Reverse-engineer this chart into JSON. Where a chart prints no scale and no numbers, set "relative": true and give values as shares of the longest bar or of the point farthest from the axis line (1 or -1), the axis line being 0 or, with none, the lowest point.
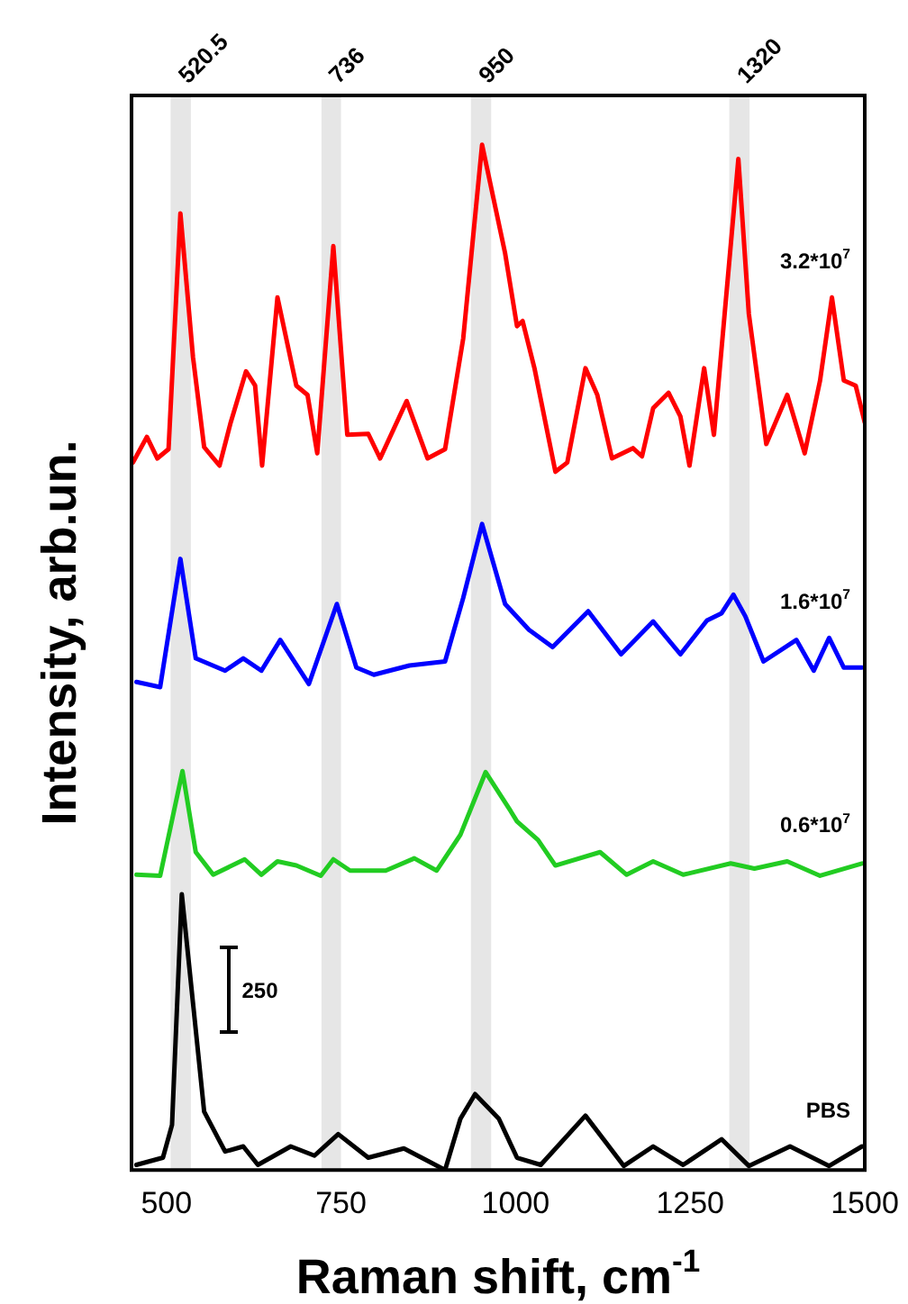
{
  "chart_data": {
    "type": "line",
    "relative": true,
    "xlabel": "Raman shift, cm$^{-1}$",
    "ylabel": "Intensity, arb.un.",
    "xlim": [
      450,
      1500
    ],
    "xticks": [
      500,
      750,
      1000,
      1250,
      1500
    ],
    "grid": false,
    "legend": false,
    "marker": "none",
    "line_style": "solid",
    "bands": [
      {
        "axis": "x",
        "from": 506,
        "to": 535,
        "label": "520.5",
        "color": "#e6e6e6"
      },
      {
        "axis": "x",
        "from": 722,
        "to": 750,
        "label": "736",
        "color": "#e6e6e6"
      },
      {
        "axis": "x",
        "from": 936,
        "to": 965,
        "label": "950",
        "color": "#e6e6e6"
      },
      {
        "axis": "x",
        "from": 1306,
        "to": 1335,
        "label": "1320",
        "color": "#e6e6e6"
      }
    ],
    "annotations": [
      "250"
    ],
    "series": [
      {
        "name": "3.2*10$^{7}$",
        "color": "#ff0000",
        "x": [
          452,
          472,
          487,
          503,
          520,
          538,
          554,
          576,
          592,
          614,
          627,
          637,
          659,
          686,
          702,
          716,
          739,
          759,
          789,
          806,
          844,
          874,
          899,
          925,
          952,
          985,
          1002,
          1010,
          1027,
          1057,
          1074,
          1100,
          1117,
          1138,
          1168,
          1181,
          1197,
          1219,
          1236,
          1249,
          1270,
          1284,
          1319,
          1334,
          1359,
          1389,
          1414,
          1436,
          1453,
          1470,
          1487,
          1500
        ],
        "values": [
          0.69,
          0.715,
          0.694,
          0.703,
          0.933,
          0.793,
          0.705,
          0.687,
          0.729,
          0.779,
          0.765,
          0.687,
          0.851,
          0.765,
          0.756,
          0.699,
          0.901,
          0.717,
          0.718,
          0.694,
          0.75,
          0.694,
          0.703,
          0.811,
          1,
          0.894,
          0.823,
          0.828,
          0.782,
          0.681,
          0.69,
          0.782,
          0.756,
          0.694,
          0.704,
          0.696,
          0.743,
          0.758,
          0.735,
          0.687,
          0.782,
          0.717,
          0.986,
          0.835,
          0.708,
          0.756,
          0.699,
          0.77,
          0.851,
          0.77,
          0.765,
          0.729
        ]
      },
      {
        "name": "1.6*10$^{7}$",
        "color": "#0000ff",
        "x": [
          457,
          491,
          520,
          542,
          584,
          610,
          636,
          663,
          704,
          744,
          772,
          797,
          848,
          899,
          925,
          952,
          985,
          1019,
          1053,
          1104,
          1151,
          1197,
          1236,
          1274,
          1295,
          1312,
          1329,
          1355,
          1402,
          1427,
          1449,
          1470,
          1496
        ],
        "values": [
          0.476,
          0.471,
          0.596,
          0.499,
          0.487,
          0.499,
          0.487,
          0.517,
          0.474,
          0.552,
          0.49,
          0.483,
          0.492,
          0.496,
          0.558,
          0.63,
          0.552,
          0.527,
          0.51,
          0.545,
          0.503,
          0.535,
          0.503,
          0.536,
          0.543,
          0.561,
          0.54,
          0.496,
          0.517,
          0.487,
          0.519,
          0.49,
          0.49
        ]
      },
      {
        "name": "0.6*10$^{7}$",
        "color": "#22cc22",
        "x": [
          457,
          491,
          523,
          542,
          567,
          612,
          636,
          659,
          686,
          721,
          739,
          763,
          814,
          855,
          887,
          921,
          957,
          993,
          1002,
          1032,
          1057,
          1121,
          1159,
          1197,
          1240,
          1308,
          1342,
          1389,
          1436,
          1496
        ],
        "values": [
          0.288,
          0.287,
          0.389,
          0.31,
          0.288,
          0.303,
          0.288,
          0.301,
          0.297,
          0.287,
          0.303,
          0.292,
          0.292,
          0.304,
          0.292,
          0.327,
          0.388,
          0.35,
          0.34,
          0.322,
          0.297,
          0.31,
          0.288,
          0.301,
          0.288,
          0.299,
          0.294,
          0.301,
          0.287,
          0.299
        ]
      },
      {
        "name": "PBS",
        "color": "#000000",
        "x": [
          457,
          495,
          508,
          522,
          538,
          554,
          584,
          610,
          631,
          678,
          712,
          746,
          789,
          840,
          874,
          899,
          921,
          942,
          976,
          1002,
          1036,
          1100,
          1155,
          1197,
          1240,
          1295,
          1334,
          1393,
          1449,
          1496
        ],
        "values": [
          0.005,
          0.012,
          0.044,
          0.269,
          0.163,
          0.057,
          0.018,
          0.023,
          0.005,
          0.023,
          0.014,
          0.035,
          0.012,
          0.021,
          0.009,
          0,
          0.05,
          0.074,
          0.05,
          0.012,
          0.005,
          0.053,
          0.004,
          0.023,
          0.005,
          0.03,
          0.004,
          0.023,
          0.004,
          0.023
        ]
      }
    ]
  }
}
